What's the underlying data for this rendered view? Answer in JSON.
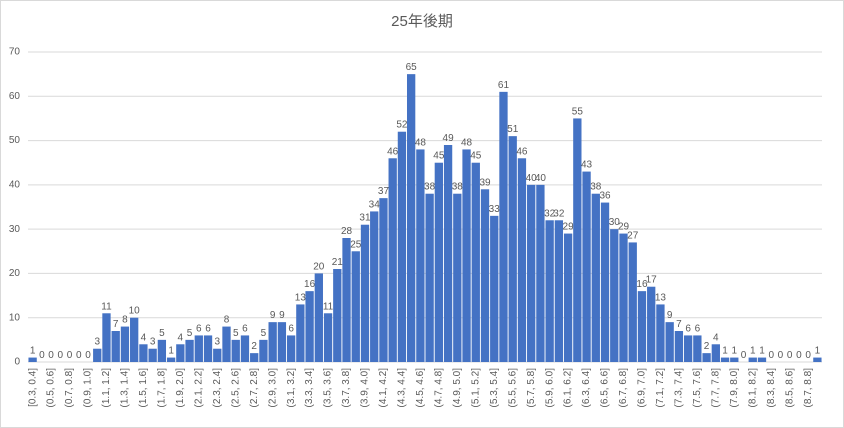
{
  "chart_data": {
    "type": "bar",
    "title": "25年後期",
    "categories": [
      "[0.3, 0.4]",
      null,
      "(0.5, 0.6]",
      null,
      "(0.7, 0.8]",
      null,
      "(0.9, 1.0]",
      null,
      "(1.1, 1.2]",
      null,
      "(1.3, 1.4]",
      null,
      "(1.5, 1.6]",
      null,
      "(1.7, 1.8]",
      null,
      "(1.9, 2.0]",
      null,
      "(2.1, 2.2]",
      null,
      "(2.3, 2.4]",
      null,
      "(2.5, 2.6]",
      null,
      "(2.7, 2.8]",
      null,
      "(2.9, 3.0]",
      null,
      "(3.1, 3.2]",
      null,
      "(3.3, 3.4]",
      null,
      "(3.5, 3.6]",
      null,
      "(3.7, 3.8]",
      null,
      "(3.9, 4.0]",
      null,
      "(4.1, 4.2]",
      null,
      "(4.3, 4.4]",
      null,
      "(4.5, 4.6]",
      null,
      "(4.7, 4.8]",
      null,
      "(4.9, 5.0]",
      null,
      "(5.1, 5.2]",
      null,
      "(5.3, 5.4]",
      null,
      "(5.5, 5.6]",
      null,
      "(5.7, 5.8]",
      null,
      "(5.9, 6.0]",
      null,
      "(6.1, 6.2]",
      null,
      "(6.3, 6.4]",
      null,
      "(6.5, 6.6]",
      null,
      "(6.7, 6.8]",
      null,
      "(6.9, 7.0]",
      null,
      "(7.1, 7.2]",
      null,
      "(7.3, 7.4]",
      null,
      "(7.5, 7.6]",
      null,
      "(7.7, 7.8]",
      null,
      "(7.9, 8.0]",
      null,
      "(8.1, 8.2]",
      null,
      "(8.3, 8.4]",
      null,
      "(8.5, 8.6]",
      null,
      "(8.7, 8.8]",
      null
    ],
    "values": [
      1,
      0,
      0,
      0,
      0,
      0,
      0,
      3,
      11,
      7,
      8,
      10,
      4,
      3,
      5,
      1,
      4,
      5,
      6,
      6,
      3,
      8,
      5,
      6,
      2,
      5,
      9,
      9,
      6,
      13,
      16,
      20,
      11,
      21,
      28,
      25,
      31,
      34,
      37,
      46,
      52,
      65,
      48,
      38,
      45,
      49,
      38,
      48,
      45,
      39,
      33,
      61,
      51,
      46,
      40,
      40,
      32,
      32,
      29,
      55,
      43,
      38,
      36,
      30,
      29,
      27,
      16,
      17,
      13,
      9,
      7,
      6,
      6,
      2,
      4,
      1,
      1,
      0,
      1,
      1,
      0,
      0,
      0,
      0,
      0,
      1
    ],
    "color": "#4472c4",
    "ylim": [
      0,
      70
    ],
    "yticks": [
      0,
      10,
      20,
      30,
      40,
      50,
      60,
      70
    ],
    "grid": true
  }
}
